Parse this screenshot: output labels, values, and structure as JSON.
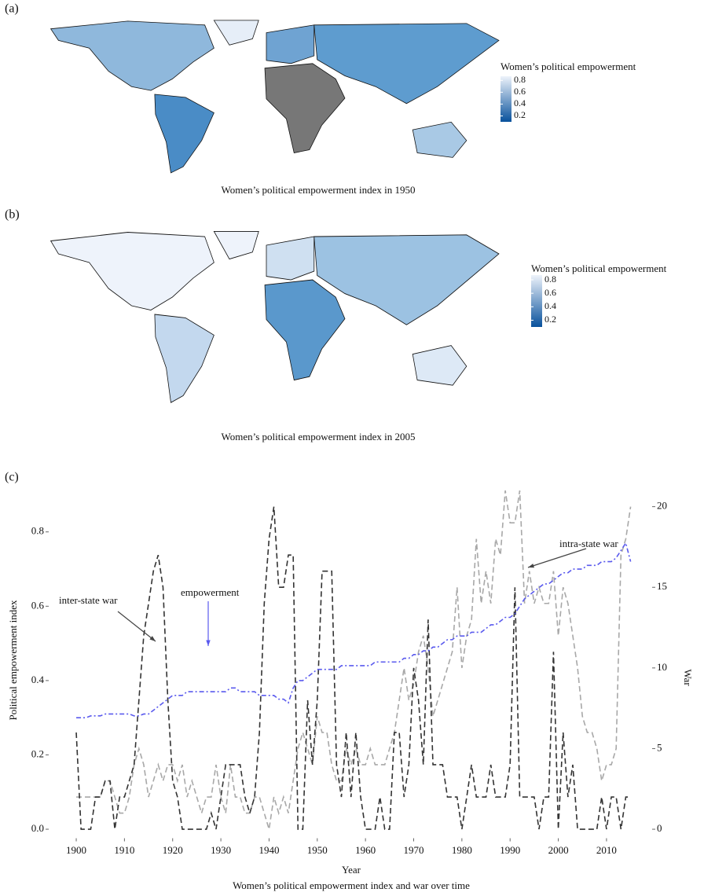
{
  "chart_data": [
    {
      "type": "map",
      "panel_label": "(a)",
      "caption": "Women’s political empowerment index in 1950",
      "legend_title": "Women’s political empowerment",
      "legend_ticks": [
        0.8,
        0.6,
        0.4,
        0.2
      ],
      "scale_lim": [
        0.1,
        0.87
      ],
      "colors": [
        "#08519c",
        "#eef3fb"
      ],
      "missing_color": "#777777"
    },
    {
      "type": "map",
      "panel_label": "(b)",
      "caption": "Women’s political empowerment index in 2005",
      "legend_title": "Women’s political empowerment",
      "legend_ticks": [
        0.8,
        0.6,
        0.4,
        0.2
      ],
      "scale_lim": [
        0.1,
        0.87
      ],
      "colors": [
        "#08519c",
        "#eef3fb"
      ],
      "missing_color": "#777777"
    },
    {
      "type": "line",
      "panel_label": "(c)",
      "caption": "Women’s political empowerment index and war over time",
      "x_label": "Year",
      "y_label": "Political empowerment index",
      "y2_label": "War",
      "x": [
        1900,
        1901,
        1902,
        1903,
        1904,
        1905,
        1906,
        1907,
        1908,
        1909,
        1910,
        1911,
        1912,
        1913,
        1914,
        1915,
        1916,
        1917,
        1918,
        1919,
        1920,
        1921,
        1922,
        1923,
        1924,
        1925,
        1926,
        1927,
        1928,
        1929,
        1930,
        1931,
        1932,
        1933,
        1934,
        1935,
        1936,
        1937,
        1938,
        1939,
        1940,
        1941,
        1942,
        1943,
        1944,
        1945,
        1946,
        1947,
        1948,
        1949,
        1950,
        1951,
        1952,
        1953,
        1954,
        1955,
        1956,
        1957,
        1958,
        1959,
        1960,
        1961,
        1962,
        1963,
        1964,
        1965,
        1966,
        1967,
        1968,
        1969,
        1970,
        1971,
        1972,
        1973,
        1974,
        1975,
        1976,
        1977,
        1978,
        1979,
        1980,
        1981,
        1982,
        1983,
        1984,
        1985,
        1986,
        1987,
        1988,
        1989,
        1990,
        1991,
        1992,
        1993,
        1994,
        1995,
        1996,
        1997,
        1998,
        1999,
        2000,
        2001,
        2002,
        2003,
        2004,
        2005,
        2006,
        2007,
        2008,
        2009,
        2010,
        2011,
        2012,
        2013,
        2014,
        2015
      ],
      "xlim": [
        1896,
        2018
      ],
      "xticks": [
        1900,
        1910,
        1920,
        1930,
        1940,
        1950,
        1960,
        1970,
        1980,
        1990,
        2000,
        2010
      ],
      "ylim": [
        -0.02,
        0.92
      ],
      "yticks": [
        {
          "value": 0,
          "label": "0.0"
        },
        0.2,
        0.4,
        0.6,
        0.8
      ],
      "y2lim": [
        -0.46,
        21.2
      ],
      "y2ticks": [
        0,
        5,
        10,
        15,
        20
      ],
      "series": [
        {
          "name": "empowerment",
          "color": "#5a5aee",
          "line_style": "dashdot",
          "values": [
            0.3,
            0.3,
            0.3,
            0.305,
            0.305,
            0.305,
            0.31,
            0.31,
            0.31,
            0.31,
            0.31,
            0.31,
            0.305,
            0.305,
            0.31,
            0.31,
            0.32,
            0.33,
            0.34,
            0.35,
            0.36,
            0.36,
            0.36,
            0.37,
            0.37,
            0.37,
            0.37,
            0.37,
            0.37,
            0.37,
            0.37,
            0.37,
            0.38,
            0.38,
            0.37,
            0.37,
            0.37,
            0.37,
            0.36,
            0.36,
            0.36,
            0.36,
            0.35,
            0.35,
            0.34,
            0.38,
            0.4,
            0.4,
            0.41,
            0.42,
            0.43,
            0.43,
            0.43,
            0.43,
            0.43,
            0.44,
            0.44,
            0.44,
            0.44,
            0.44,
            0.44,
            0.44,
            0.45,
            0.45,
            0.45,
            0.45,
            0.45,
            0.45,
            0.46,
            0.46,
            0.47,
            0.47,
            0.48,
            0.48,
            0.49,
            0.49,
            0.5,
            0.51,
            0.51,
            0.52,
            0.52,
            0.52,
            0.53,
            0.53,
            0.53,
            0.54,
            0.55,
            0.55,
            0.56,
            0.57,
            0.57,
            0.58,
            0.6,
            0.62,
            0.63,
            0.64,
            0.65,
            0.66,
            0.66,
            0.67,
            0.68,
            0.69,
            0.69,
            0.7,
            0.7,
            0.7,
            0.71,
            0.71,
            0.71,
            0.72,
            0.72,
            0.72,
            0.73,
            0.75,
            0.77,
            0.72
          ]
        },
        {
          "name": "inter-state war",
          "color": "#333333",
          "line_style": "dashed",
          "axis": "y2",
          "values": [
            6,
            0,
            0,
            0,
            2,
            2,
            3,
            3,
            0,
            2,
            2,
            3,
            4,
            8,
            12,
            14,
            16,
            17,
            15,
            8,
            3,
            2,
            0,
            0,
            0,
            0,
            0,
            0,
            1,
            0,
            2,
            4,
            4,
            4,
            4,
            2,
            1,
            2,
            6,
            14,
            18,
            20,
            15,
            15,
            17,
            17,
            0,
            0,
            8,
            4,
            8,
            16,
            16,
            16,
            4,
            2,
            6,
            2,
            6,
            2,
            0,
            0,
            0,
            2,
            0,
            0,
            6,
            6,
            2,
            4,
            10,
            8,
            4,
            13,
            4,
            4,
            4,
            2,
            2,
            2,
            0,
            2,
            4,
            2,
            2,
            2,
            4,
            2,
            2,
            2,
            4,
            15,
            2,
            2,
            2,
            2,
            0,
            2,
            2,
            11,
            0,
            6,
            2,
            4,
            0,
            0,
            0,
            0,
            0,
            2,
            0,
            2,
            2,
            0,
            2,
            2
          ]
        },
        {
          "name": "intra-state war",
          "color": "#a8a8a8",
          "line_style": "dashed",
          "axis": "y2",
          "values": [
            2,
            2,
            2,
            2,
            2,
            2,
            3,
            3,
            2,
            1,
            1,
            2,
            4,
            5,
            4,
            2,
            3,
            4,
            3,
            4,
            4,
            3,
            4,
            2,
            3,
            2,
            1,
            2,
            2,
            4,
            2,
            1,
            4,
            2,
            2,
            1,
            1,
            2,
            2,
            1,
            0,
            2,
            1,
            2,
            1,
            3,
            5,
            6,
            5,
            4,
            7,
            6,
            6,
            4,
            3,
            3,
            5,
            4,
            5,
            4,
            4,
            5,
            4,
            4,
            4,
            5,
            6,
            8,
            10,
            8,
            9,
            11,
            12,
            10,
            7,
            8,
            9,
            10,
            11,
            15,
            10,
            12,
            13,
            18,
            14,
            16,
            14,
            18,
            17,
            21,
            19,
            19,
            21,
            14,
            16,
            14,
            15,
            14,
            14,
            16,
            12,
            15,
            14,
            12,
            10,
            7,
            6,
            6,
            5,
            3,
            4,
            4,
            5,
            17,
            18,
            20
          ]
        }
      ]
    }
  ]
}
